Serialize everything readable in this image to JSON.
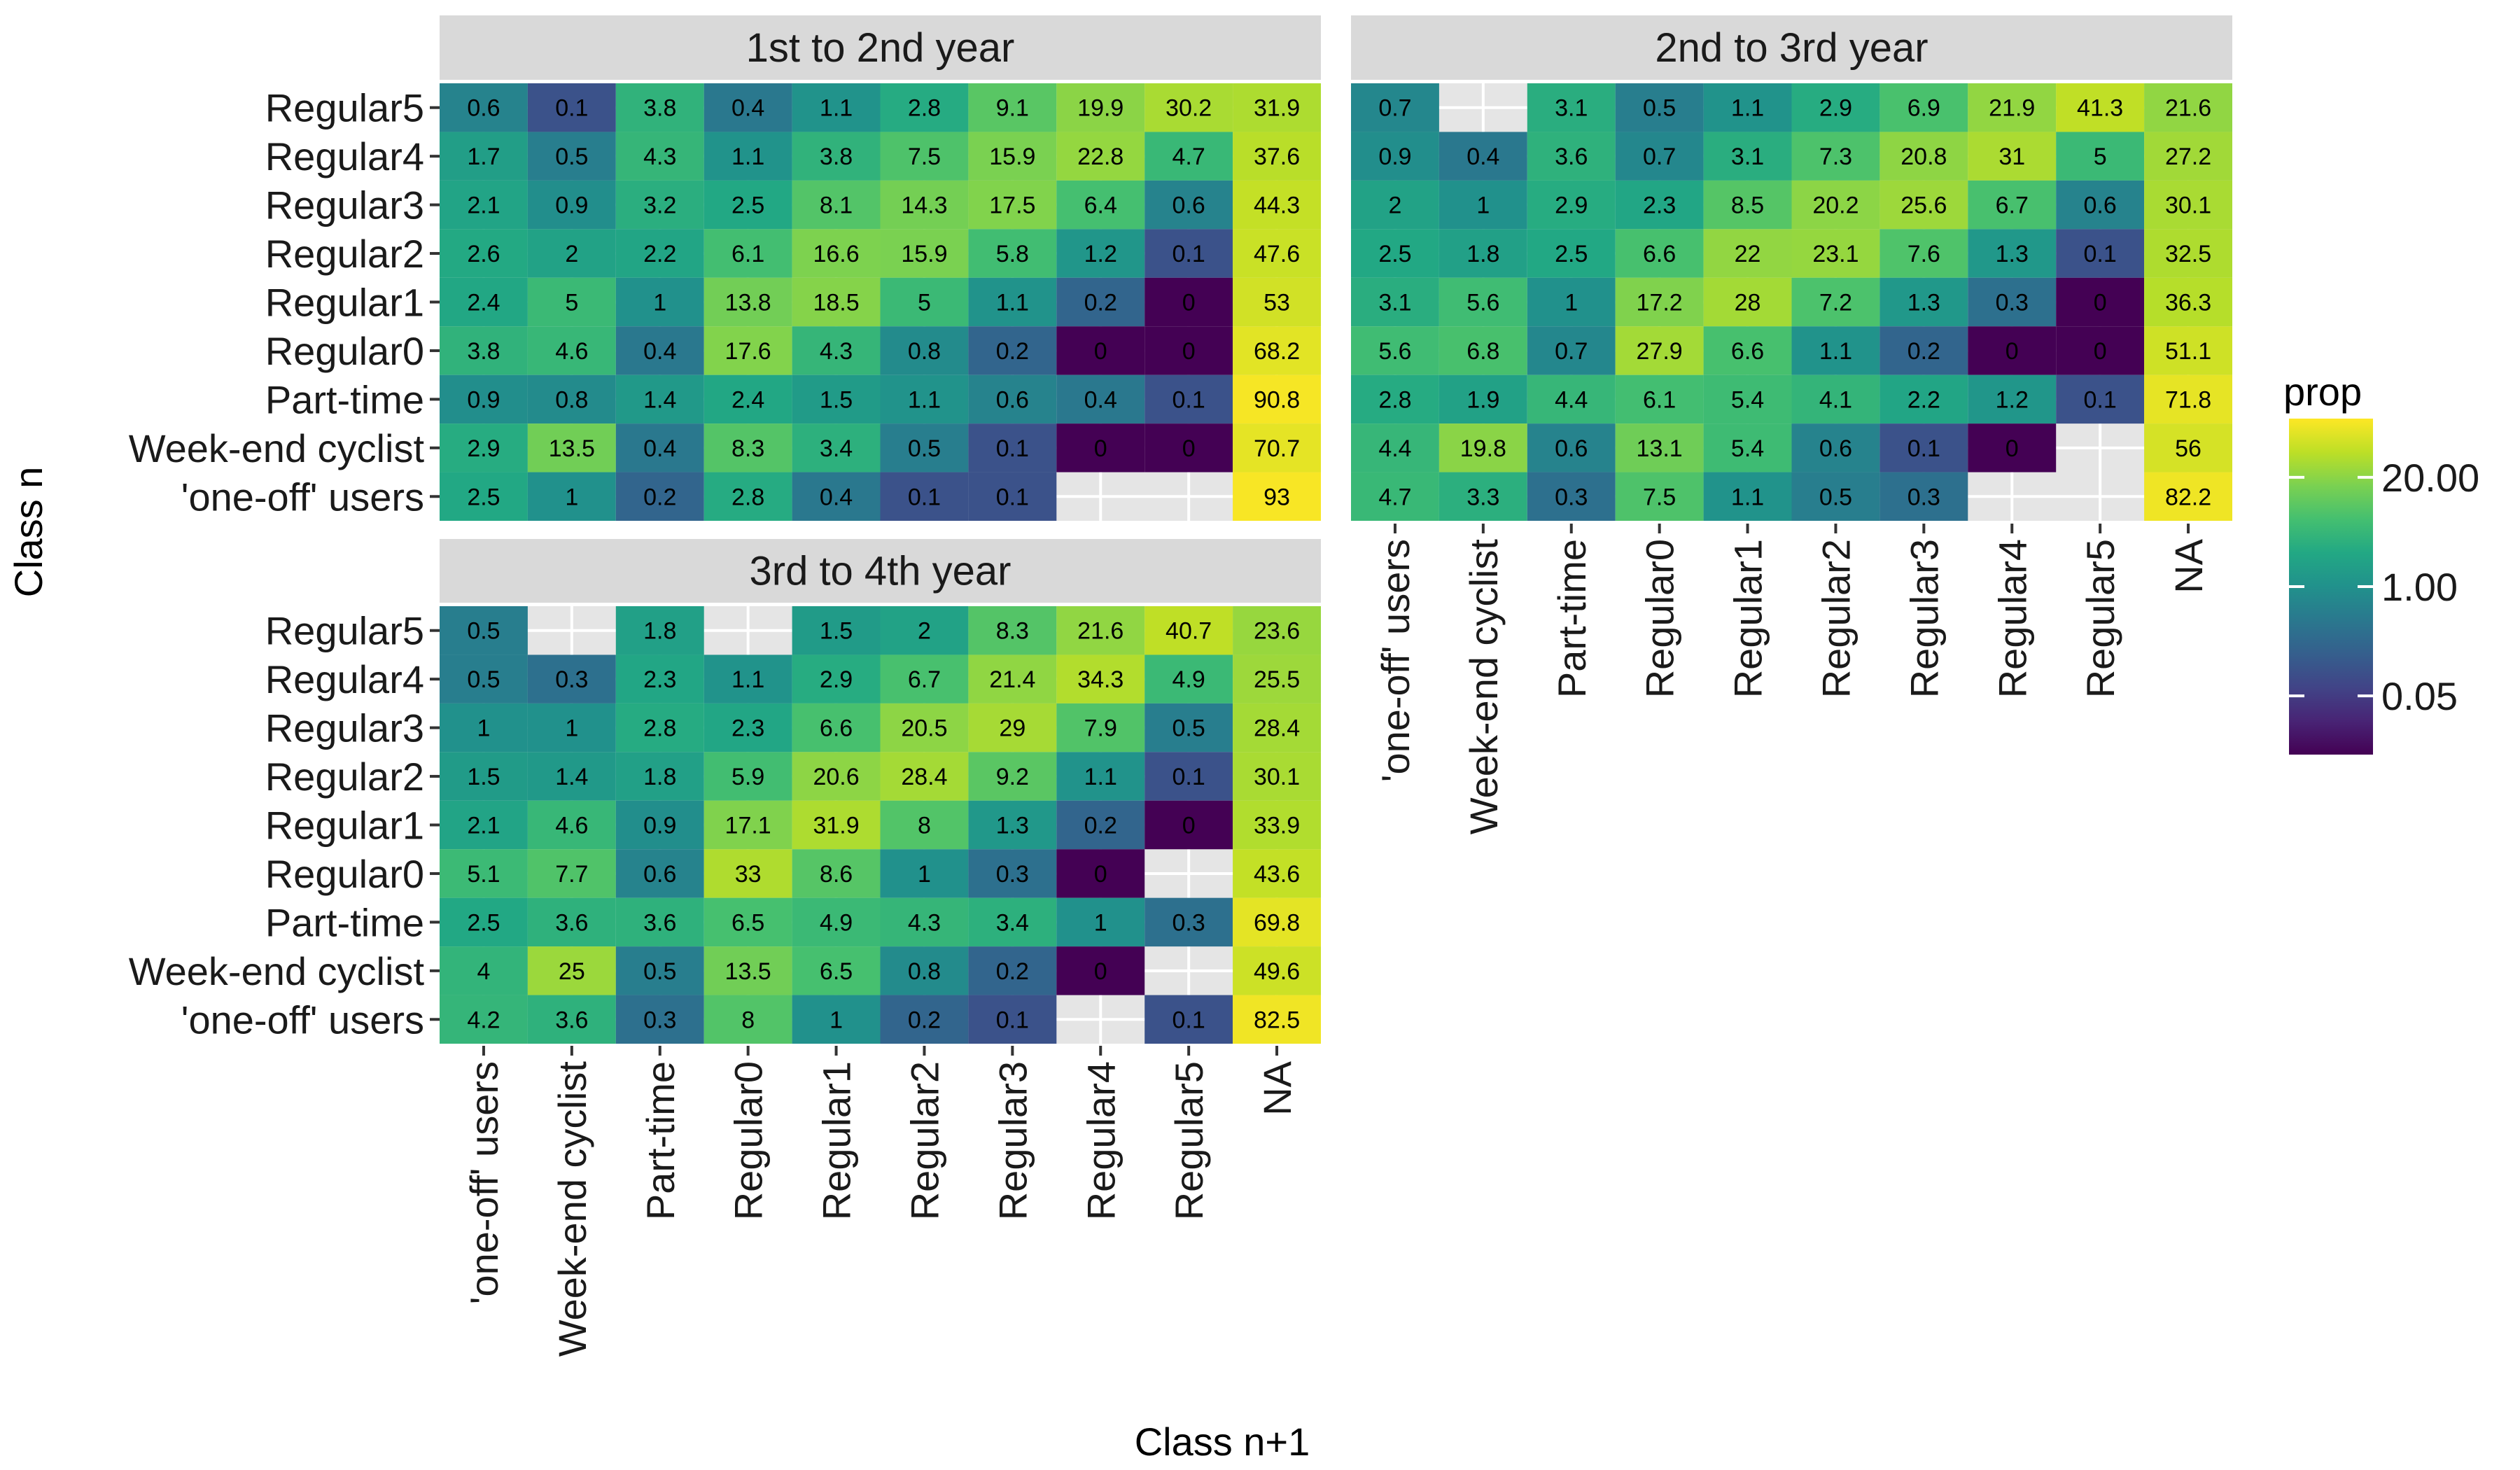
{
  "chart_data": {
    "type": "heatmap",
    "xlabel": "Class n+1",
    "ylabel": "Class n",
    "x_categories": [
      "'one-off' users",
      "Week-end cyclist",
      "Part-time",
      "Regular0",
      "Regular1",
      "Regular2",
      "Regular3",
      "Regular4",
      "Regular5",
      "NA"
    ],
    "y_categories": [
      "Regular5",
      "Regular4",
      "Regular3",
      "Regular2",
      "Regular1",
      "Regular0",
      "Part-time",
      "Week-end cyclist",
      "'one-off' users"
    ],
    "colorscale": "viridis",
    "color_scale_type": "log",
    "legend": {
      "title": "prop",
      "ticks": [
        {
          "value": 20,
          "label": "20.00"
        },
        {
          "value": 1,
          "label": "1.00"
        },
        {
          "value": 0.05,
          "label": "0.05"
        }
      ],
      "placement": "right"
    },
    "missing_color": "#e5e5e5",
    "panels": [
      {
        "title": "1st to 2nd year",
        "values": [
          [
            0.6,
            0.1,
            3.8,
            0.4,
            1.1,
            2.8,
            9.1,
            19.9,
            30.2,
            31.9
          ],
          [
            1.7,
            0.5,
            4.3,
            1.1,
            3.8,
            7.5,
            15.9,
            22.8,
            4.7,
            37.6
          ],
          [
            2.1,
            0.9,
            3.2,
            2.5,
            8.1,
            14.3,
            17.5,
            6.4,
            0.6,
            44.3
          ],
          [
            2.6,
            2,
            2.2,
            6.1,
            16.6,
            15.9,
            5.8,
            1.2,
            0.1,
            47.6
          ],
          [
            2.4,
            5,
            1,
            13.8,
            18.5,
            5,
            1.1,
            0.2,
            0,
            53
          ],
          [
            3.8,
            4.6,
            0.4,
            17.6,
            4.3,
            0.8,
            0.2,
            0,
            0,
            68.2
          ],
          [
            0.9,
            0.8,
            1.4,
            2.4,
            1.5,
            1.1,
            0.6,
            0.4,
            0.1,
            90.8
          ],
          [
            2.9,
            13.5,
            0.4,
            8.3,
            3.4,
            0.5,
            0.1,
            0,
            0,
            70.7
          ],
          [
            2.5,
            1,
            0.2,
            2.8,
            0.4,
            0.1,
            0.1,
            null,
            null,
            93
          ]
        ]
      },
      {
        "title": "2nd to 3rd year",
        "values": [
          [
            0.7,
            null,
            3.1,
            0.5,
            1.1,
            2.9,
            6.9,
            21.9,
            41.3,
            21.6
          ],
          [
            0.9,
            0.4,
            3.6,
            0.7,
            3.1,
            7.3,
            20.8,
            31,
            5,
            27.2
          ],
          [
            2,
            1,
            2.9,
            2.3,
            8.5,
            20.2,
            25.6,
            6.7,
            0.6,
            30.1
          ],
          [
            2.5,
            1.8,
            2.5,
            6.6,
            22,
            23.1,
            7.6,
            1.3,
            0.1,
            32.5
          ],
          [
            3.1,
            5.6,
            1,
            17.2,
            28,
            7.2,
            1.3,
            0.3,
            0,
            36.3
          ],
          [
            5.6,
            6.8,
            0.7,
            27.9,
            6.6,
            1.1,
            0.2,
            0,
            0,
            51.1
          ],
          [
            2.8,
            1.9,
            4.4,
            6.1,
            5.4,
            4.1,
            2.2,
            1.2,
            0.1,
            71.8
          ],
          [
            4.4,
            19.8,
            0.6,
            13.1,
            5.4,
            0.6,
            0.1,
            0,
            null,
            56
          ],
          [
            4.7,
            3.3,
            0.3,
            7.5,
            1.1,
            0.5,
            0.3,
            null,
            null,
            82.2
          ]
        ]
      },
      {
        "title": "3rd to 4th year",
        "values": [
          [
            0.5,
            null,
            1.8,
            null,
            1.5,
            2,
            8.3,
            21.6,
            40.7,
            23.6
          ],
          [
            0.5,
            0.3,
            2.3,
            1.1,
            2.9,
            6.7,
            21.4,
            34.3,
            4.9,
            25.5
          ],
          [
            1,
            1,
            2.8,
            2.3,
            6.6,
            20.5,
            29,
            7.9,
            0.5,
            28.4
          ],
          [
            1.5,
            1.4,
            1.8,
            5.9,
            20.6,
            28.4,
            9.2,
            1.1,
            0.1,
            30.1
          ],
          [
            2.1,
            4.6,
            0.9,
            17.1,
            31.9,
            8,
            1.3,
            0.2,
            0,
            33.9
          ],
          [
            5.1,
            7.7,
            0.6,
            33,
            8.6,
            1,
            0.3,
            0,
            null,
            43.6
          ],
          [
            2.5,
            3.6,
            3.6,
            6.5,
            4.9,
            4.3,
            3.4,
            1,
            0.3,
            69.8
          ],
          [
            4,
            25,
            0.5,
            13.5,
            6.5,
            0.8,
            0.2,
            0,
            null,
            49.6
          ],
          [
            4.2,
            3.6,
            0.3,
            8,
            1,
            0.2,
            0.1,
            null,
            0.1,
            82.5
          ]
        ]
      }
    ]
  }
}
